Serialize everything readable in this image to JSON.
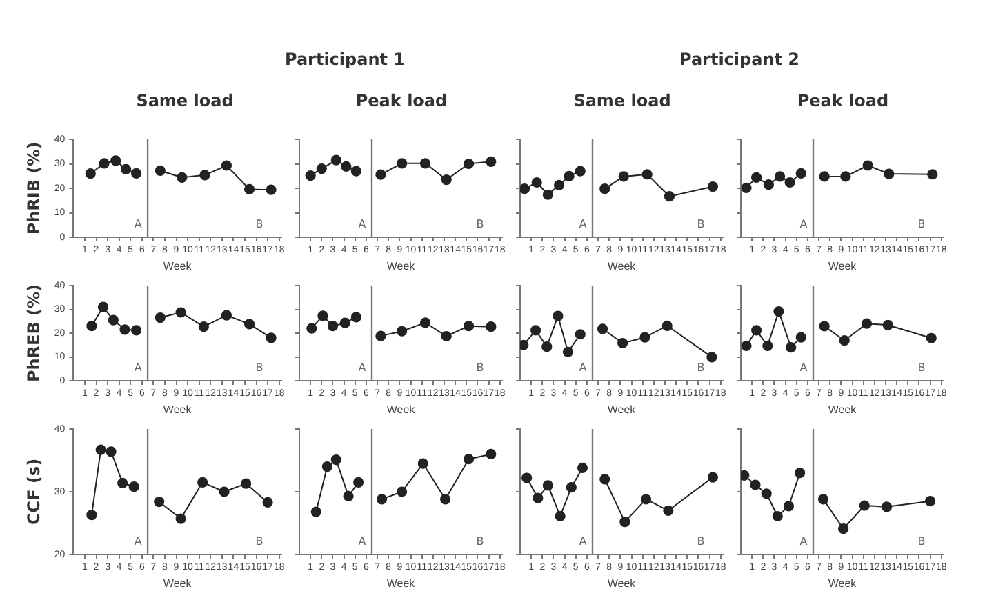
{
  "chart_data": [
    {
      "type": "other",
      "title": "Participant 1"
    },
    {
      "type": "other",
      "title": "Participant 2"
    },
    {
      "type": "line",
      "title": "Same load",
      "xlabel": "Week",
      "ylabel": "PhRIB (%)",
      "marker": "circle",
      "xlim": [
        0,
        18.2
      ],
      "xticks": [
        1,
        2,
        3,
        4,
        5,
        6,
        7,
        8,
        9,
        10,
        11,
        12,
        13,
        14,
        15,
        16,
        17,
        18
      ],
      "ylim": [
        0,
        40
      ],
      "yticks": [
        0,
        10,
        20,
        30,
        40
      ],
      "ref_lines": [
        {
          "axis": "x",
          "value": 6.5
        }
      ],
      "annotations": [
        "A",
        "B"
      ],
      "series": [
        {
          "color": "#222222",
          "x": [
            1.5,
            2.7,
            3.7,
            4.6,
            5.5
          ],
          "values": [
            26,
            30.2,
            31.3,
            27.8,
            26.1
          ]
        },
        {
          "color": "#222222",
          "x": [
            7.6,
            9.5,
            11.5,
            13.4,
            15.4,
            17.3
          ],
          "values": [
            27.2,
            24.4,
            25.4,
            29.3,
            19.6,
            19.4
          ]
        }
      ]
    },
    {
      "type": "line",
      "title": "Peak load",
      "xlabel": "Week",
      "tick_labels": "x",
      "marker": "circle",
      "xlim": [
        0,
        18.2
      ],
      "xticks": [
        1,
        2,
        3,
        4,
        5,
        6,
        7,
        8,
        9,
        10,
        11,
        12,
        13,
        14,
        15,
        16,
        17,
        18
      ],
      "ylim": [
        0,
        40
      ],
      "yticks": [
        0,
        10,
        20,
        30,
        40
      ],
      "ref_lines": [
        {
          "axis": "x",
          "value": 6.5
        }
      ],
      "annotations": [
        "A",
        "B"
      ],
      "series": [
        {
          "color": "#222222",
          "x": [
            1,
            2,
            3.3,
            4.2,
            5.1
          ],
          "values": [
            25.2,
            28,
            31.5,
            28.9,
            27
          ]
        },
        {
          "color": "#222222",
          "x": [
            7.3,
            9.2,
            11.3,
            13.2,
            15.2,
            17.2
          ],
          "values": [
            25.6,
            30.2,
            30.2,
            23.5,
            30,
            30.9
          ]
        }
      ]
    },
    {
      "type": "line",
      "title": "Same load",
      "xlabel": "Week",
      "tick_labels": "x",
      "marker": "circle",
      "xlim": [
        0,
        18.2
      ],
      "xticks": [
        1,
        2,
        3,
        4,
        5,
        6,
        7,
        8,
        9,
        10,
        11,
        12,
        13,
        14,
        15,
        16,
        17,
        18
      ],
      "ylim": [
        0,
        40
      ],
      "yticks": [
        0,
        10,
        20,
        30,
        40
      ],
      "ref_lines": [
        {
          "axis": "x",
          "value": 6.5
        }
      ],
      "annotations": [
        "A",
        "B"
      ],
      "series": [
        {
          "color": "#222222",
          "x": [
            0.4,
            1.5,
            2.5,
            3.5,
            4.4,
            5.4
          ],
          "values": [
            19.8,
            22.4,
            17.4,
            21.3,
            25,
            27
          ]
        },
        {
          "color": "#222222",
          "x": [
            7.6,
            9.3,
            11.4,
            13.4,
            17.3
          ],
          "values": [
            19.8,
            24.8,
            25.7,
            16.7,
            20.7
          ]
        }
      ]
    },
    {
      "type": "line",
      "title": "Peak load",
      "xlabel": "Week",
      "tick_labels": "x",
      "marker": "circle",
      "xlim": [
        0,
        18.2
      ],
      "xticks": [
        1,
        2,
        3,
        4,
        5,
        6,
        7,
        8,
        9,
        10,
        11,
        12,
        13,
        14,
        15,
        16,
        17,
        18
      ],
      "ylim": [
        0,
        40
      ],
      "yticks": [
        0,
        10,
        20,
        30,
        40
      ],
      "ref_lines": [
        {
          "axis": "x",
          "value": 6.5
        }
      ],
      "annotations": [
        "A",
        "B"
      ],
      "series": [
        {
          "color": "#222222",
          "x": [
            0.5,
            1.4,
            2.5,
            3.5,
            4.4,
            5.4
          ],
          "values": [
            20.2,
            24.4,
            21.5,
            24.8,
            22.4,
            26.1
          ]
        },
        {
          "color": "#222222",
          "x": [
            7.5,
            9.4,
            11.4,
            13.3,
            17.2
          ],
          "values": [
            24.8,
            24.8,
            29.3,
            25.9,
            25.7
          ]
        }
      ]
    },
    {
      "type": "line",
      "xlabel": "Week",
      "ylabel": "PhREB (%)",
      "marker": "circle",
      "xlim": [
        0,
        18.2
      ],
      "xticks": [
        1,
        2,
        3,
        4,
        5,
        6,
        7,
        8,
        9,
        10,
        11,
        12,
        13,
        14,
        15,
        16,
        17,
        18
      ],
      "ylim": [
        0,
        40
      ],
      "yticks": [
        0,
        10,
        20,
        30,
        40
      ],
      "ref_lines": [
        {
          "axis": "x",
          "value": 6.5
        }
      ],
      "annotations": [
        "A",
        "B"
      ],
      "series": [
        {
          "color": "#222222",
          "x": [
            1.6,
            2.6,
            3.5,
            4.5,
            5.5
          ],
          "values": [
            23,
            31,
            25.5,
            21.5,
            21.2
          ]
        },
        {
          "color": "#222222",
          "x": [
            7.6,
            9.4,
            11.4,
            13.4,
            15.4,
            17.3
          ],
          "values": [
            26.5,
            28.7,
            22.7,
            27.5,
            23.8,
            18
          ]
        }
      ]
    },
    {
      "type": "line",
      "xlabel": "Week",
      "tick_labels": "x",
      "marker": "circle",
      "xlim": [
        0,
        18.2
      ],
      "xticks": [
        1,
        2,
        3,
        4,
        5,
        6,
        7,
        8,
        9,
        10,
        11,
        12,
        13,
        14,
        15,
        16,
        17,
        18
      ],
      "ylim": [
        0,
        40
      ],
      "yticks": [
        0,
        10,
        20,
        30,
        40
      ],
      "ref_lines": [
        {
          "axis": "x",
          "value": 6.5
        }
      ],
      "annotations": [
        "A",
        "B"
      ],
      "series": [
        {
          "color": "#222222",
          "x": [
            1.1,
            2.1,
            3,
            4.1,
            5.1
          ],
          "values": [
            22,
            27.3,
            23,
            24.3,
            26.7
          ]
        },
        {
          "color": "#222222",
          "x": [
            7.3,
            9.2,
            11.3,
            13.2,
            15.2,
            17.2
          ],
          "values": [
            18.8,
            20.8,
            24.4,
            18.7,
            23,
            22.7
          ]
        }
      ]
    },
    {
      "type": "line",
      "xlabel": "Week",
      "tick_labels": "x",
      "marker": "circle",
      "xlim": [
        0,
        18.2
      ],
      "xticks": [
        1,
        2,
        3,
        4,
        5,
        6,
        7,
        8,
        9,
        10,
        11,
        12,
        13,
        14,
        15,
        16,
        17,
        18
      ],
      "ylim": [
        0,
        40
      ],
      "yticks": [
        0,
        10,
        20,
        30,
        40
      ],
      "ref_lines": [
        {
          "axis": "x",
          "value": 6.5
        }
      ],
      "annotations": [
        "A",
        "B"
      ],
      "series": [
        {
          "color": "#222222",
          "x": [
            0.3,
            1.4,
            2.4,
            3.4,
            4.3,
            5.4
          ],
          "values": [
            15,
            21.2,
            14.3,
            27.2,
            12.1,
            19.5
          ]
        },
        {
          "color": "#222222",
          "x": [
            7.4,
            9.2,
            11.2,
            13.2,
            17.2
          ],
          "values": [
            21.8,
            15.8,
            18.2,
            23.1,
            9.9
          ]
        }
      ]
    },
    {
      "type": "line",
      "xlabel": "Week",
      "tick_labels": "x",
      "marker": "circle",
      "xlim": [
        0,
        18.2
      ],
      "xticks": [
        1,
        2,
        3,
        4,
        5,
        6,
        7,
        8,
        9,
        10,
        11,
        12,
        13,
        14,
        15,
        16,
        17,
        18
      ],
      "ylim": [
        0,
        40
      ],
      "yticks": [
        0,
        10,
        20,
        30,
        40
      ],
      "ref_lines": [
        {
          "axis": "x",
          "value": 6.5
        }
      ],
      "annotations": [
        "A",
        "B"
      ],
      "series": [
        {
          "color": "#222222",
          "x": [
            0.5,
            1.4,
            2.4,
            3.4,
            4.5,
            5.4
          ],
          "values": [
            14.7,
            21.2,
            14.7,
            29.1,
            14,
            18.2
          ]
        },
        {
          "color": "#222222",
          "x": [
            7.5,
            9.3,
            11.3,
            13.2,
            17.1
          ],
          "values": [
            22.9,
            16.9,
            24,
            23.4,
            17.9
          ]
        }
      ]
    },
    {
      "type": "line",
      "xlabel": "Week",
      "ylabel": "CCF (s)",
      "marker": "circle",
      "xlim": [
        0,
        18.2
      ],
      "xticks": [
        1,
        2,
        3,
        4,
        5,
        6,
        7,
        8,
        9,
        10,
        11,
        12,
        13,
        14,
        15,
        16,
        17,
        18
      ],
      "ylim": [
        20,
        40
      ],
      "yticks": [
        20,
        30,
        40
      ],
      "ref_lines": [
        {
          "axis": "x",
          "value": 6.5
        }
      ],
      "annotations": [
        "A",
        "B"
      ],
      "series": [
        {
          "color": "#222222",
          "x": [
            1.6,
            2.4,
            3.3,
            4.3,
            5.3
          ],
          "values": [
            26.3,
            36.7,
            36.4,
            31.4,
            30.8
          ]
        },
        {
          "color": "#222222",
          "x": [
            7.5,
            9.4,
            11.3,
            13.2,
            15.1,
            17
          ],
          "values": [
            28.4,
            25.7,
            31.5,
            30,
            31.3,
            28.3
          ]
        }
      ]
    },
    {
      "type": "line",
      "xlabel": "Week",
      "tick_labels": "x",
      "marker": "circle",
      "xlim": [
        0,
        18.2
      ],
      "xticks": [
        1,
        2,
        3,
        4,
        5,
        6,
        7,
        8,
        9,
        10,
        11,
        12,
        13,
        14,
        15,
        16,
        17,
        18
      ],
      "ylim": [
        20,
        40
      ],
      "yticks": [
        20,
        30,
        40
      ],
      "ref_lines": [
        {
          "axis": "x",
          "value": 6.5
        }
      ],
      "annotations": [
        "A",
        "B"
      ],
      "series": [
        {
          "color": "#222222",
          "x": [
            1.5,
            2.5,
            3.3,
            4.4,
            5.3
          ],
          "values": [
            26.8,
            34,
            35.1,
            29.3,
            31.5
          ]
        },
        {
          "color": "#222222",
          "x": [
            7.4,
            9.2,
            11.1,
            13.1,
            15.2,
            17.2
          ],
          "values": [
            28.8,
            30,
            34.5,
            28.8,
            35.2,
            36
          ]
        }
      ]
    },
    {
      "type": "line",
      "xlabel": "Week",
      "tick_labels": "x",
      "marker": "circle",
      "xlim": [
        0,
        18.2
      ],
      "xticks": [
        1,
        2,
        3,
        4,
        5,
        6,
        7,
        8,
        9,
        10,
        11,
        12,
        13,
        14,
        15,
        16,
        17,
        18
      ],
      "ylim": [
        20,
        40
      ],
      "yticks": [
        20,
        30,
        40
      ],
      "ref_lines": [
        {
          "axis": "x",
          "value": 6.5
        }
      ],
      "annotations": [
        "A",
        "B"
      ],
      "series": [
        {
          "color": "#222222",
          "x": [
            0.6,
            1.6,
            2.5,
            3.6,
            4.6,
            5.6
          ],
          "values": [
            32.2,
            29,
            31,
            26.1,
            30.7,
            33.8
          ]
        },
        {
          "color": "#222222",
          "x": [
            7.6,
            9.4,
            11.3,
            13.3,
            17.3
          ],
          "values": [
            32,
            25.2,
            28.8,
            27,
            32.3
          ]
        }
      ]
    },
    {
      "type": "line",
      "xlabel": "Week",
      "tick_labels": "x",
      "marker": "circle",
      "xlim": [
        0,
        18.2
      ],
      "xticks": [
        1,
        2,
        3,
        4,
        5,
        6,
        7,
        8,
        9,
        10,
        11,
        12,
        13,
        14,
        15,
        16,
        17,
        18
      ],
      "ylim": [
        20,
        40
      ],
      "yticks": [
        20,
        30,
        40
      ],
      "ref_lines": [
        {
          "axis": "x",
          "value": 6.5
        }
      ],
      "annotations": [
        "A",
        "B"
      ],
      "series": [
        {
          "color": "#222222",
          "x": [
            0.3,
            1.3,
            2.3,
            3.3,
            4.3,
            5.3
          ],
          "values": [
            32.6,
            31.1,
            29.7,
            26.1,
            27.7,
            33
          ]
        },
        {
          "color": "#222222",
          "x": [
            7.4,
            9.2,
            11.1,
            13.1,
            17
          ],
          "values": [
            28.8,
            24.1,
            27.8,
            27.6,
            28.5
          ]
        }
      ]
    }
  ]
}
